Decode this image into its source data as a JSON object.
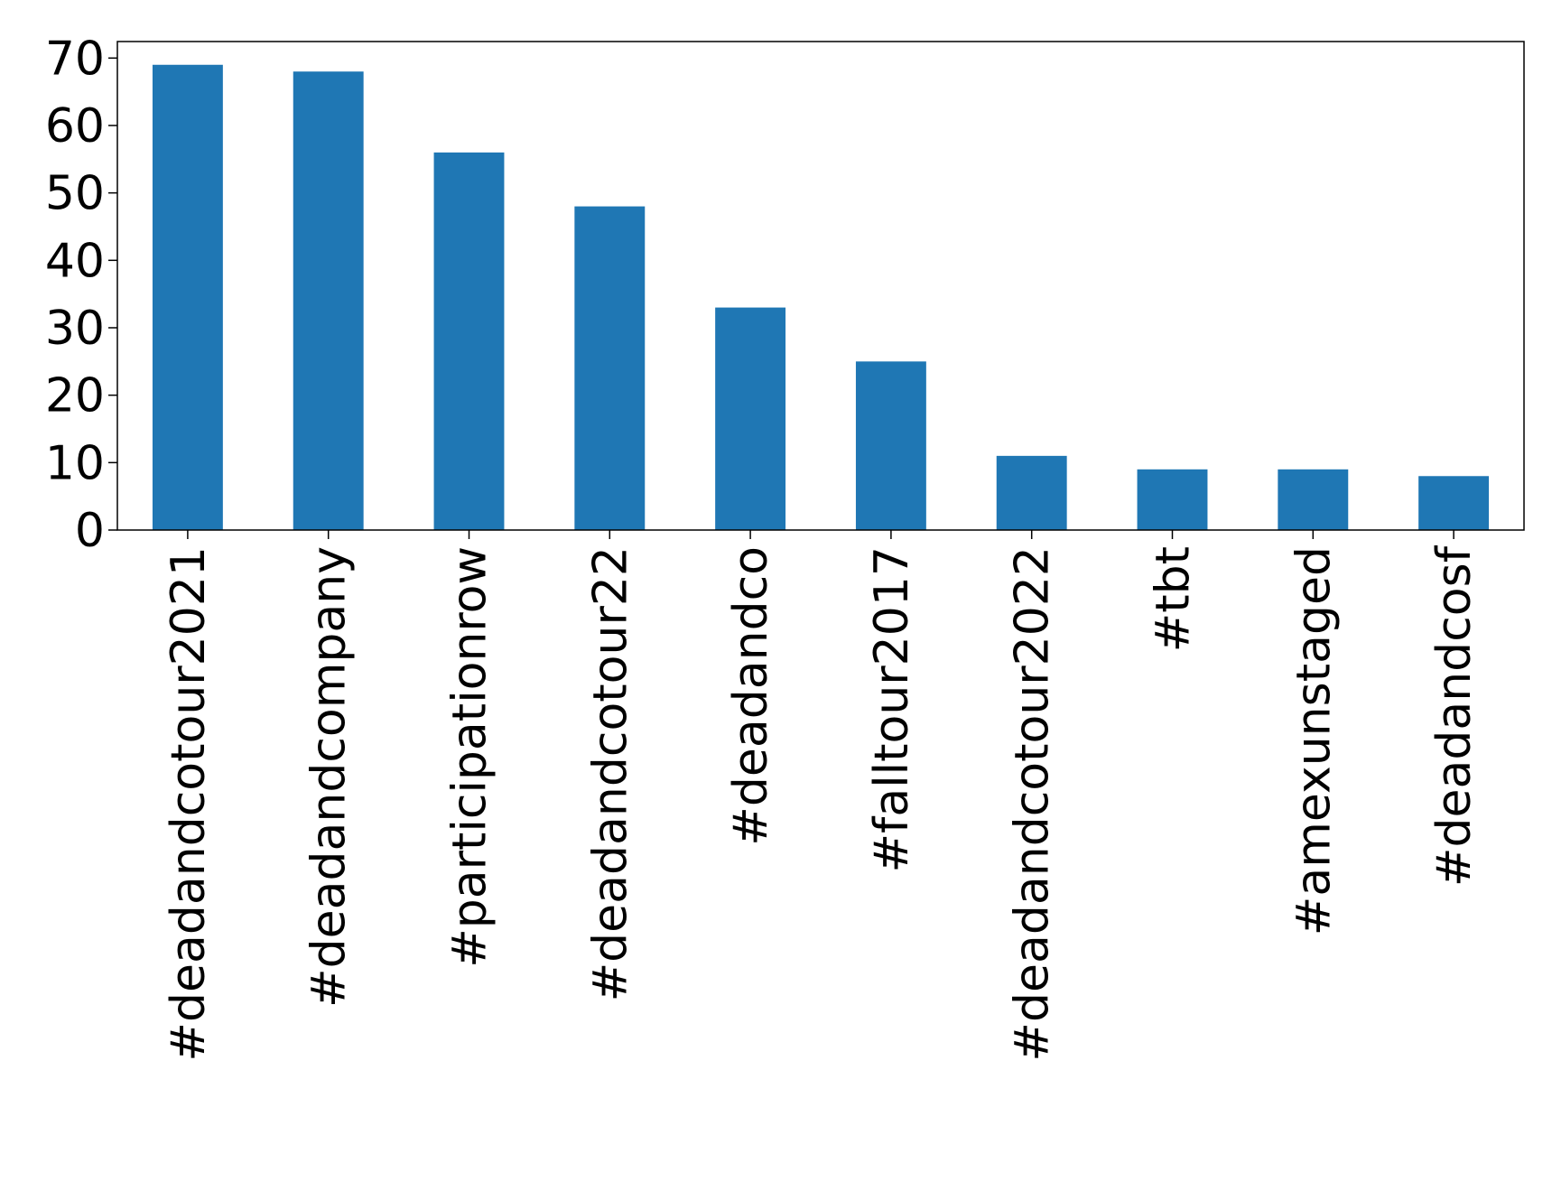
{
  "chart_data": {
    "type": "bar",
    "title": "",
    "xlabel": "",
    "ylabel": "",
    "categories": [
      "#deadandcotour2021",
      "#deadandcompany",
      "#participationrow",
      "#deadandcotour22",
      "#deadandco",
      "#falltour2017",
      "#deadandcotour2022",
      "#tbt",
      "#amexunstaged",
      "#deadandcosf"
    ],
    "values": [
      69,
      68,
      56,
      48,
      33,
      25,
      11,
      9,
      9,
      8
    ],
    "ylim": [
      0,
      72.45
    ],
    "yticks": [
      0,
      10,
      20,
      30,
      40,
      50,
      60,
      70
    ],
    "grid": false,
    "legend": "none",
    "bar_color": "#1f77b4"
  }
}
